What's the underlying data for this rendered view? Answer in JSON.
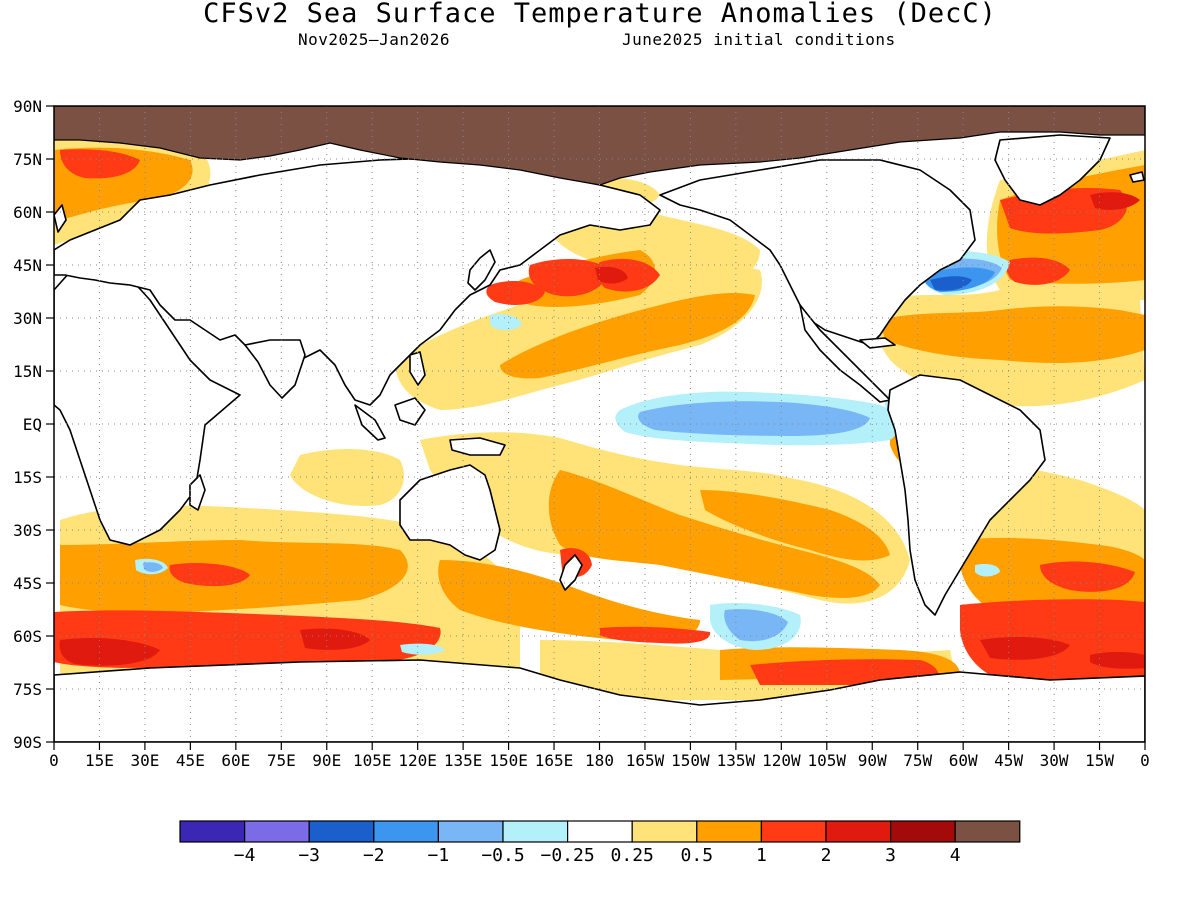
{
  "title": "CFSv2 Sea Surface Temperature Anomalies (DecC)",
  "subtitle_left": "Nov2025—Jan2026",
  "subtitle_right": "June2025 initial conditions",
  "lat_labels": [
    "90N",
    "75N",
    "60N",
    "45N",
    "30N",
    "15N",
    "EQ",
    "15S",
    "30S",
    "45S",
    "60S",
    "75S",
    "90S"
  ],
  "lon_labels": [
    "0",
    "15E",
    "30E",
    "45E",
    "60E",
    "75E",
    "90E",
    "105E",
    "120E",
    "135E",
    "150E",
    "165E",
    "180",
    "165W",
    "150W",
    "135W",
    "120W",
    "105W",
    "90W",
    "75W",
    "60W",
    "45W",
    "30W",
    "15W",
    "0"
  ],
  "colorbar": {
    "colors": [
      "#3c26b4",
      "#7c6be6",
      "#1a5fcc",
      "#3c96f0",
      "#78b6f5",
      "#b4f0fa",
      "#ffffff",
      "#ffe378",
      "#ffa000",
      "#ff3a14",
      "#e01a0e",
      "#a50a0a",
      "#7a5142"
    ],
    "labels": [
      "−4",
      "−3",
      "−2",
      "−1",
      "−0.5",
      "−0.25",
      "0.25",
      "0.5",
      "1",
      "2",
      "3",
      "4"
    ]
  },
  "map_data": {
    "projection": "cylindrical equidistant",
    "lon_range": [
      0,
      360
    ],
    "lat_range": [
      -90,
      90
    ],
    "land_mask_color": "#7a5142",
    "anomaly_regions": [
      {
        "name": "Eq. Pacific cold tongue",
        "lon": [
          205,
          275
        ],
        "lat": [
          -6,
          5
        ],
        "value": -1
      },
      {
        "name": "NE Pacific warm",
        "lon": [
          150,
          205
        ],
        "lat": [
          30,
          47
        ],
        "value": 2
      },
      {
        "name": "N Pacific broad warm",
        "lon": [
          120,
          250
        ],
        "lat": [
          10,
          45
        ],
        "value": 0.5
      },
      {
        "name": "Gulf Stream cold",
        "lon": [
          285,
          310
        ],
        "lat": [
          37,
          45
        ],
        "value": -2
      },
      {
        "name": "N Atlantic warm",
        "lon": [
          300,
          360
        ],
        "lat": [
          45,
          70
        ],
        "value": 2
      },
      {
        "name": "Southern Ocean warm",
        "lon": [
          0,
          100
        ],
        "lat": [
          -67,
          -55
        ],
        "value": 2
      },
      {
        "name": "S Atlantic warm",
        "lon": [
          300,
          360
        ],
        "lat": [
          -68,
          -52
        ],
        "value": 2
      },
      {
        "name": "SE Pacific cold",
        "lon": [
          240,
          260
        ],
        "lat": [
          -63,
          -55
        ],
        "value": -1
      },
      {
        "name": "Tasman warm",
        "lon": [
          160,
          180
        ],
        "lat": [
          -45,
          -35
        ],
        "value": 2
      }
    ]
  }
}
